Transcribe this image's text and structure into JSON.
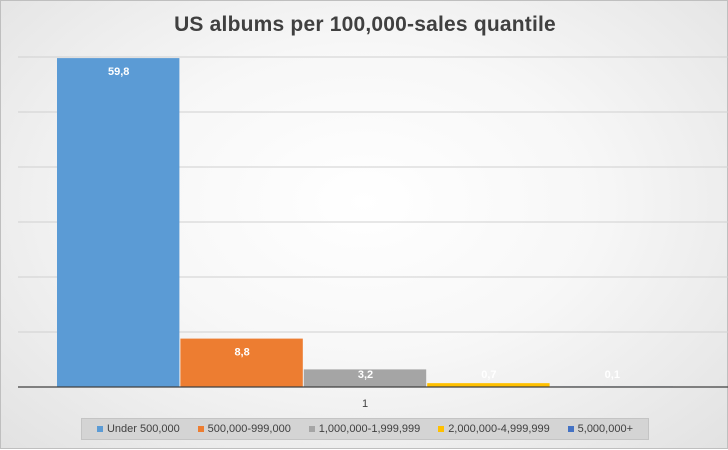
{
  "title": "US albums per 100,000-sales quantile",
  "chart_data": {
    "type": "bar",
    "categories": [
      "1"
    ],
    "ylim": [
      0,
      60
    ],
    "grid": true,
    "legend_position": "bottom",
    "series": [
      {
        "name": "Under 500,000",
        "values": [
          59.8
        ],
        "label": "59,8",
        "color": "#5b9bd5"
      },
      {
        "name": "500,000-999,000",
        "values": [
          8.8
        ],
        "label": "8,8",
        "color": "#ed7d31"
      },
      {
        "name": "1,000,000-1,999,999",
        "values": [
          3.2
        ],
        "label": "3,2",
        "color": "#a5a5a5"
      },
      {
        "name": "2,000,000-4,999,999",
        "values": [
          0.7
        ],
        "label": "0,7",
        "color": "#ffc000"
      },
      {
        "name": "5,000,000+",
        "values": [
          0.1
        ],
        "label": "0,1",
        "color": "#4472c4"
      }
    ]
  }
}
